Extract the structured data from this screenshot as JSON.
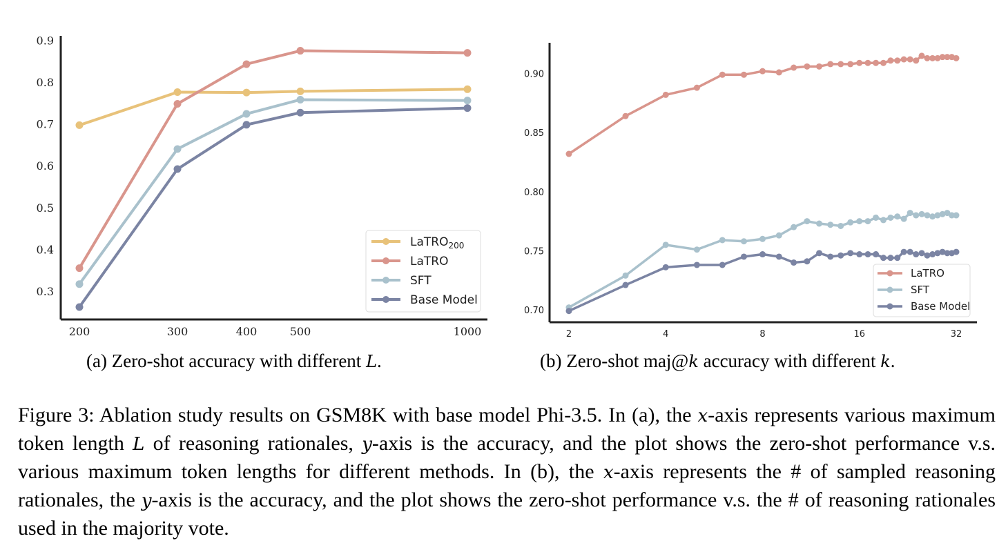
{
  "chart_data": [
    {
      "type": "line",
      "panel": "(a)",
      "caption_prefix": "(a) Zero-shot accuracy with different",
      "caption_var": "L",
      "caption_suffix": ".",
      "x": [
        200,
        300,
        400,
        500,
        1000
      ],
      "x_tick_labels": [
        "200",
        "300",
        "400",
        "500",
        "1000"
      ],
      "y_ticks": [
        "0.3",
        "0.4",
        "0.5",
        "0.6",
        "0.7",
        "0.8",
        "0.9"
      ],
      "ylim": [
        0.23,
        0.92
      ],
      "legend_position": "lower-right",
      "grid": false,
      "series": [
        {
          "name": "LaTRO",
          "subscript": "200",
          "color": "#e8c27a",
          "values": [
            0.697,
            0.776,
            0.775,
            0.778,
            0.783
          ]
        },
        {
          "name": "LaTRO",
          "color": "#d9958c",
          "values": [
            0.355,
            0.748,
            0.843,
            0.875,
            0.87
          ]
        },
        {
          "name": "SFT",
          "color": "#a9c1cc",
          "values": [
            0.317,
            0.64,
            0.724,
            0.758,
            0.756
          ]
        },
        {
          "name": "Base Model",
          "color": "#7b84a3",
          "values": [
            0.262,
            0.592,
            0.698,
            0.727,
            0.738
          ]
        }
      ]
    },
    {
      "type": "line",
      "panel": "(b)",
      "caption_prefix": "(b) Zero-shot maj@",
      "caption_var": "k",
      "caption_mid": " accuracy with different ",
      "caption_var2": "k",
      "caption_suffix": ".",
      "x": [
        2,
        3,
        4,
        5,
        6,
        7,
        8,
        9,
        10,
        11,
        12,
        13,
        14,
        15,
        16,
        17,
        18,
        19,
        20,
        21,
        22,
        23,
        24,
        25,
        26,
        27,
        28,
        29,
        30,
        31,
        32
      ],
      "x_ticks": [
        2,
        4,
        8,
        16,
        32
      ],
      "x_tick_labels": [
        "2",
        "4",
        "8",
        "16",
        "32"
      ],
      "x_scale": "log2",
      "y_ticks": [
        "0.70",
        "0.75",
        "0.80",
        "0.85",
        "0.90"
      ],
      "ylim": [
        0.695,
        0.926
      ],
      "legend_position": "lower-right",
      "grid": false,
      "series": [
        {
          "name": "LaTRO",
          "color": "#d9958c",
          "values": [
            0.832,
            0.864,
            0.882,
            0.888,
            0.899,
            0.899,
            0.902,
            0.901,
            0.905,
            0.906,
            0.906,
            0.908,
            0.908,
            0.908,
            0.909,
            0.909,
            0.909,
            0.909,
            0.911,
            0.911,
            0.912,
            0.912,
            0.911,
            0.915,
            0.913,
            0.913,
            0.913,
            0.914,
            0.914,
            0.914,
            0.913
          ]
        },
        {
          "name": "SFT",
          "color": "#a9c1cc",
          "values": [
            0.702,
            0.729,
            0.755,
            0.751,
            0.759,
            0.758,
            0.76,
            0.763,
            0.77,
            0.775,
            0.773,
            0.772,
            0.771,
            0.774,
            0.775,
            0.775,
            0.778,
            0.776,
            0.778,
            0.779,
            0.777,
            0.782,
            0.78,
            0.781,
            0.78,
            0.779,
            0.78,
            0.781,
            0.782,
            0.78,
            0.78
          ]
        },
        {
          "name": "Base Model",
          "color": "#7b84a3",
          "values": [
            0.699,
            0.721,
            0.736,
            0.738,
            0.738,
            0.745,
            0.747,
            0.745,
            0.74,
            0.741,
            0.748,
            0.745,
            0.746,
            0.748,
            0.747,
            0.747,
            0.747,
            0.744,
            0.744,
            0.744,
            0.749,
            0.749,
            0.747,
            0.748,
            0.746,
            0.747,
            0.748,
            0.749,
            0.748,
            0.748,
            0.749
          ]
        }
      ]
    }
  ],
  "caption": {
    "p1": "Figure 3: Ablation study results on GSM8K with base model Phi-3.5. In (a), the ",
    "v1": "x",
    "p2": "-axis represents various maximum token length ",
    "v2": "L",
    "p3": " of reasoning rationales, ",
    "v3": "y",
    "p4": "-axis is the accuracy, and the plot shows the zero-shot performance v.s. various maximum token lengths for different methods. In (b), the ",
    "v4": "x",
    "p5": "-axis represents the # of sampled reasoning rationales, the ",
    "v5": "y",
    "p6": "-axis is the accuracy, and the plot shows the zero-shot performance v.s. the # of reasoning rationales used in the majority vote."
  }
}
